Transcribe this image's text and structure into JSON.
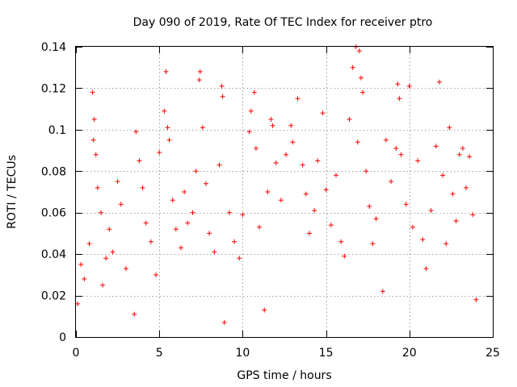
{
  "chart_data": {
    "type": "scatter",
    "title": "Day 090 of 2019, Rate Of TEC Index for receiver ptro",
    "xlabel": "GPS time / hours",
    "ylabel": "ROTI / TECUs",
    "xlim": [
      0,
      25
    ],
    "ylim": [
      0,
      0.14
    ],
    "xticks": [
      0,
      5,
      10,
      15,
      20,
      25
    ],
    "xtick_labels": [
      "0",
      "5",
      "10",
      "15",
      "20",
      "25"
    ],
    "yticks": [
      0,
      0.02,
      0.04,
      0.06,
      0.08,
      0.1,
      0.12,
      0.14
    ],
    "ytick_labels": [
      "0",
      "0.02",
      "0.04",
      "0.06",
      "0.08",
      "0.1",
      "0.12",
      "0.14"
    ],
    "grid": true,
    "marker": "plus",
    "color": "#ff0000",
    "series": [
      {
        "name": "ROTI",
        "points": [
          [
            0.1,
            0.016
          ],
          [
            0.3,
            0.035
          ],
          [
            0.5,
            0.028
          ],
          [
            0.8,
            0.045
          ],
          [
            1.0,
            0.118
          ],
          [
            1.05,
            0.095
          ],
          [
            1.1,
            0.105
          ],
          [
            1.2,
            0.088
          ],
          [
            1.3,
            0.072
          ],
          [
            1.5,
            0.06
          ],
          [
            1.6,
            0.025
          ],
          [
            1.8,
            0.038
          ],
          [
            2.0,
            0.052
          ],
          [
            2.2,
            0.041
          ],
          [
            2.5,
            0.075
          ],
          [
            2.7,
            0.064
          ],
          [
            3.0,
            0.033
          ],
          [
            3.5,
            0.011
          ],
          [
            3.6,
            0.099
          ],
          [
            3.8,
            0.085
          ],
          [
            4.0,
            0.072
          ],
          [
            4.2,
            0.055
          ],
          [
            4.5,
            0.046
          ],
          [
            4.8,
            0.03
          ],
          [
            5.0,
            0.089
          ],
          [
            5.3,
            0.109
          ],
          [
            5.4,
            0.128
          ],
          [
            5.5,
            0.101
          ],
          [
            5.6,
            0.095
          ],
          [
            5.8,
            0.066
          ],
          [
            6.0,
            0.052
          ],
          [
            6.3,
            0.043
          ],
          [
            6.5,
            0.07
          ],
          [
            6.7,
            0.055
          ],
          [
            7.0,
            0.06
          ],
          [
            7.2,
            0.08
          ],
          [
            7.4,
            0.124
          ],
          [
            7.45,
            0.128
          ],
          [
            7.6,
            0.101
          ],
          [
            7.8,
            0.074
          ],
          [
            8.0,
            0.05
          ],
          [
            8.3,
            0.041
          ],
          [
            8.6,
            0.083
          ],
          [
            8.75,
            0.121
          ],
          [
            8.8,
            0.116
          ],
          [
            8.9,
            0.007
          ],
          [
            9.2,
            0.06
          ],
          [
            9.5,
            0.046
          ],
          [
            9.8,
            0.038
          ],
          [
            10.0,
            0.059
          ],
          [
            10.4,
            0.099
          ],
          [
            10.5,
            0.109
          ],
          [
            10.7,
            0.118
          ],
          [
            10.8,
            0.091
          ],
          [
            11.0,
            0.053
          ],
          [
            11.3,
            0.013
          ],
          [
            11.5,
            0.07
          ],
          [
            11.7,
            0.105
          ],
          [
            11.8,
            0.102
          ],
          [
            12.0,
            0.084
          ],
          [
            12.3,
            0.066
          ],
          [
            12.6,
            0.088
          ],
          [
            12.9,
            0.102
          ],
          [
            13.0,
            0.094
          ],
          [
            13.3,
            0.115
          ],
          [
            13.6,
            0.083
          ],
          [
            13.8,
            0.069
          ],
          [
            14.0,
            0.05
          ],
          [
            14.3,
            0.061
          ],
          [
            14.5,
            0.085
          ],
          [
            14.8,
            0.108
          ],
          [
            15.0,
            0.071
          ],
          [
            15.3,
            0.054
          ],
          [
            15.6,
            0.078
          ],
          [
            15.9,
            0.046
          ],
          [
            16.1,
            0.039
          ],
          [
            16.4,
            0.105
          ],
          [
            16.6,
            0.13
          ],
          [
            16.8,
            0.14
          ],
          [
            16.9,
            0.094
          ],
          [
            17.0,
            0.138
          ],
          [
            17.1,
            0.125
          ],
          [
            17.2,
            0.118
          ],
          [
            17.4,
            0.08
          ],
          [
            17.6,
            0.063
          ],
          [
            17.8,
            0.045
          ],
          [
            18.0,
            0.057
          ],
          [
            18.4,
            0.022
          ],
          [
            18.6,
            0.095
          ],
          [
            18.9,
            0.075
          ],
          [
            19.2,
            0.091
          ],
          [
            19.3,
            0.122
          ],
          [
            19.4,
            0.115
          ],
          [
            19.5,
            0.088
          ],
          [
            19.8,
            0.064
          ],
          [
            20.0,
            0.121
          ],
          [
            20.2,
            0.053
          ],
          [
            20.5,
            0.085
          ],
          [
            20.8,
            0.047
          ],
          [
            21.0,
            0.033
          ],
          [
            21.3,
            0.061
          ],
          [
            21.6,
            0.092
          ],
          [
            21.8,
            0.123
          ],
          [
            22.0,
            0.078
          ],
          [
            22.2,
            0.045
          ],
          [
            22.4,
            0.101
          ],
          [
            22.6,
            0.069
          ],
          [
            22.8,
            0.056
          ],
          [
            23.0,
            0.088
          ],
          [
            23.2,
            0.091
          ],
          [
            23.4,
            0.072
          ],
          [
            23.6,
            0.087
          ],
          [
            23.8,
            0.059
          ],
          [
            24.0,
            0.018
          ]
        ]
      }
    ]
  }
}
